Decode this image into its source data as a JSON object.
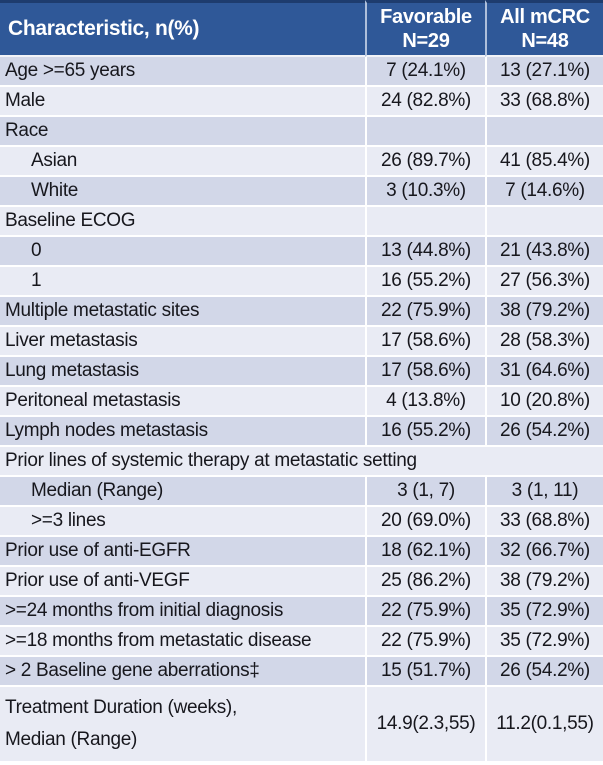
{
  "colors": {
    "header_bg": "#2F5898",
    "header_text": "#FFFFFF",
    "header_top_border": "#1E3C6E",
    "header_divider": "#AEBFDB",
    "row_dark": "#D2D7E8",
    "row_light": "#E9EBF4",
    "row_divider": "#FFFFFF",
    "body_text": "#17171D"
  },
  "table": {
    "header": {
      "characteristic": "Characteristic, n(%)",
      "favorable_line1": "Favorable",
      "favorable_line2": "N=29",
      "all_mcrc_line1": "All mCRC",
      "all_mcrc_line2": "N=48"
    },
    "rows": [
      {
        "label": "Age >=65 years",
        "favorable": "7 (24.1%)",
        "all_mcrc": "13 (27.1%)"
      },
      {
        "label": "Male",
        "favorable": "24 (82.8%)",
        "all_mcrc": "33 (68.8%)"
      },
      {
        "label": "Race",
        "favorable": "",
        "all_mcrc": ""
      },
      {
        "label": "Asian",
        "indent": true,
        "favorable": "26 (89.7%)",
        "all_mcrc": "41 (85.4%)"
      },
      {
        "label": "White",
        "indent": true,
        "favorable": "3 (10.3%)",
        "all_mcrc": "7 (14.6%)"
      },
      {
        "label": "Baseline ECOG",
        "favorable": "",
        "all_mcrc": ""
      },
      {
        "label": "0",
        "indent": true,
        "favorable": "13 (44.8%)",
        "all_mcrc": "21 (43.8%)"
      },
      {
        "label": "1",
        "indent": true,
        "favorable": "16 (55.2%)",
        "all_mcrc": "27 (56.3%)"
      },
      {
        "label": "Multiple metastatic sites",
        "favorable": "22 (75.9%)",
        "all_mcrc": "38 (79.2%)"
      },
      {
        "label": "Liver metastasis",
        "favorable": "17 (58.6%)",
        "all_mcrc": "28 (58.3%)"
      },
      {
        "label": "Lung metastasis",
        "favorable": "17 (58.6%)",
        "all_mcrc": "31 (64.6%)"
      },
      {
        "label": "Peritoneal metastasis",
        "favorable": "4 (13.8%)",
        "all_mcrc": "10 (20.8%)"
      },
      {
        "label": "Lymph nodes metastasis",
        "favorable": "16 (55.2%)",
        "all_mcrc": "26 (54.2%)"
      },
      {
        "label": "Prior lines of systemic therapy at metastatic setting",
        "span": true
      },
      {
        "label": "Median (Range)",
        "indent": true,
        "favorable": "3 (1, 7)",
        "all_mcrc": "3 (1, 11)"
      },
      {
        "label": ">=3 lines",
        "indent": true,
        "favorable": "20 (69.0%)",
        "all_mcrc": "33 (68.8%)"
      },
      {
        "label": "Prior use of anti-EGFR",
        "favorable": "18 (62.1%)",
        "all_mcrc": "32 (66.7%)"
      },
      {
        "label": "Prior use of anti-VEGF",
        "favorable": "25 (86.2%)",
        "all_mcrc": "38 (79.2%)"
      },
      {
        "label": ">=24 months from initial diagnosis",
        "favorable": "22 (75.9%)",
        "all_mcrc": "35 (72.9%)"
      },
      {
        "label": ">=18 months from metastatic disease",
        "favorable": "22 (75.9%)",
        "all_mcrc": "35 (72.9%)"
      },
      {
        "label": "> 2 Baseline gene aberrations‡",
        "favorable": "15 (51.7%)",
        "all_mcrc": "26 (54.2%)"
      },
      {
        "label": "Treatment Duration (weeks),",
        "label_line2": "Median (Range)",
        "tall": true,
        "favorable": "14.9(2.3,55)",
        "all_mcrc": "11.2(0.1,55)"
      }
    ]
  }
}
